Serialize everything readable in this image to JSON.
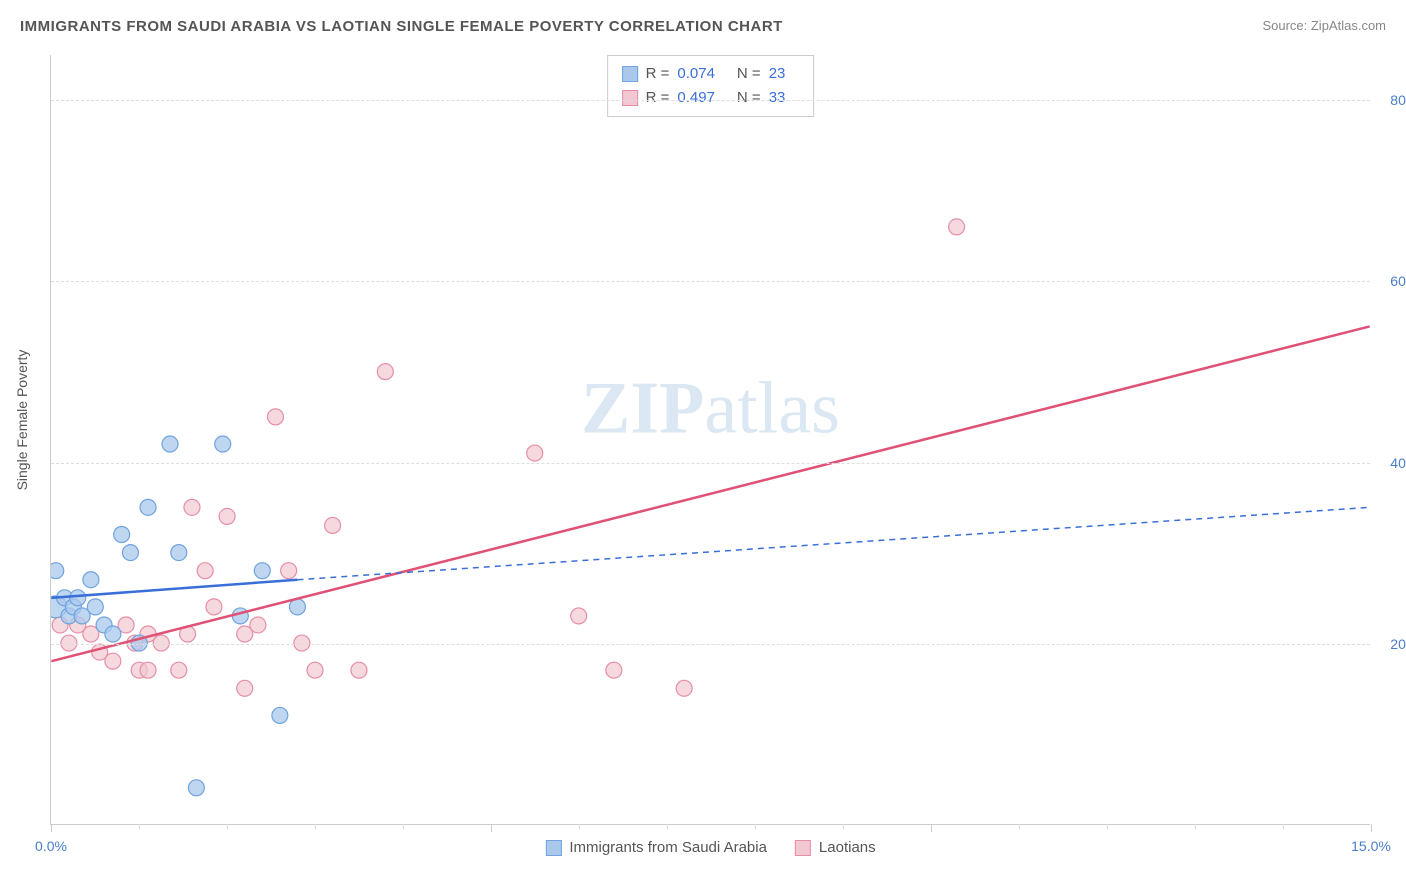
{
  "title": "IMMIGRANTS FROM SAUDI ARABIA VS LAOTIAN SINGLE FEMALE POVERTY CORRELATION CHART",
  "source": "Source: ZipAtlas.com",
  "watermark": "ZIPatlas",
  "y_axis_label": "Single Female Poverty",
  "chart": {
    "type": "scatter",
    "xlim": [
      0,
      15
    ],
    "ylim": [
      0,
      85
    ],
    "x_ticks_labeled": [
      {
        "val": 0,
        "label": "0.0%"
      },
      {
        "val": 15,
        "label": "15.0%"
      }
    ],
    "x_ticks_major": [
      0,
      5,
      10,
      15
    ],
    "x_ticks_minor": [
      1,
      2,
      3,
      4,
      6,
      7,
      8,
      9,
      11,
      12,
      13,
      14
    ],
    "y_gridlines": [
      20,
      40,
      60,
      80
    ],
    "background_color": "#ffffff",
    "grid_color": "#dddddd",
    "axis_color": "#cccccc"
  },
  "series": {
    "saudi": {
      "label": "Immigrants from Saudi Arabia",
      "color_fill": "#a9c8ec",
      "color_stroke": "#6fa3dd",
      "marker_radius": 8,
      "marker_opacity": 0.75,
      "stats": {
        "R": "0.074",
        "N": "23"
      },
      "trend": {
        "solid": {
          "x1": 0,
          "y1": 25,
          "x2": 2.8,
          "y2": 27
        },
        "dashed": {
          "x1": 2.8,
          "y1": 27,
          "x2": 15,
          "y2": 35
        },
        "stroke": "#3a6fd8",
        "stroke_width": 2.5,
        "dash": "6,5"
      },
      "points": [
        {
          "x": 0.05,
          "y": 24,
          "r": 11
        },
        {
          "x": 0.05,
          "y": 28
        },
        {
          "x": 0.15,
          "y": 25
        },
        {
          "x": 0.2,
          "y": 23
        },
        {
          "x": 0.25,
          "y": 24
        },
        {
          "x": 0.3,
          "y": 25
        },
        {
          "x": 0.35,
          "y": 23
        },
        {
          "x": 0.45,
          "y": 27
        },
        {
          "x": 0.5,
          "y": 24
        },
        {
          "x": 0.6,
          "y": 22
        },
        {
          "x": 0.7,
          "y": 21
        },
        {
          "x": 0.8,
          "y": 32
        },
        {
          "x": 0.9,
          "y": 30
        },
        {
          "x": 1.0,
          "y": 20
        },
        {
          "x": 1.1,
          "y": 35
        },
        {
          "x": 1.35,
          "y": 42
        },
        {
          "x": 1.45,
          "y": 30
        },
        {
          "x": 1.65,
          "y": 4
        },
        {
          "x": 1.95,
          "y": 42
        },
        {
          "x": 2.15,
          "y": 23
        },
        {
          "x": 2.4,
          "y": 28
        },
        {
          "x": 2.6,
          "y": 12
        },
        {
          "x": 2.8,
          "y": 24
        }
      ]
    },
    "laotian": {
      "label": "Laotians",
      "color_fill": "#f2c7d2",
      "color_stroke": "#e58fa6",
      "marker_radius": 8,
      "marker_opacity": 0.7,
      "stats": {
        "R": "0.497",
        "N": "33"
      },
      "trend": {
        "x1": 0,
        "y1": 18,
        "x2": 15,
        "y2": 55,
        "stroke": "#e05275",
        "stroke_width": 2.5
      },
      "points": [
        {
          "x": 0.1,
          "y": 22
        },
        {
          "x": 0.2,
          "y": 20
        },
        {
          "x": 0.3,
          "y": 22
        },
        {
          "x": 0.45,
          "y": 21
        },
        {
          "x": 0.55,
          "y": 19
        },
        {
          "x": 0.7,
          "y": 18
        },
        {
          "x": 0.85,
          "y": 22
        },
        {
          "x": 0.95,
          "y": 20
        },
        {
          "x": 1.0,
          "y": 17
        },
        {
          "x": 1.1,
          "y": 21
        },
        {
          "x": 1.1,
          "y": 17
        },
        {
          "x": 1.25,
          "y": 20
        },
        {
          "x": 1.45,
          "y": 17
        },
        {
          "x": 1.55,
          "y": 21
        },
        {
          "x": 1.6,
          "y": 35
        },
        {
          "x": 1.75,
          "y": 28
        },
        {
          "x": 1.85,
          "y": 24
        },
        {
          "x": 2.0,
          "y": 34
        },
        {
          "x": 2.2,
          "y": 21
        },
        {
          "x": 2.2,
          "y": 15
        },
        {
          "x": 2.35,
          "y": 22
        },
        {
          "x": 2.55,
          "y": 45
        },
        {
          "x": 2.7,
          "y": 28
        },
        {
          "x": 2.85,
          "y": 20
        },
        {
          "x": 3.0,
          "y": 17
        },
        {
          "x": 3.2,
          "y": 33
        },
        {
          "x": 3.5,
          "y": 17
        },
        {
          "x": 3.8,
          "y": 50
        },
        {
          "x": 5.5,
          "y": 41
        },
        {
          "x": 6.0,
          "y": 23
        },
        {
          "x": 6.4,
          "y": 17
        },
        {
          "x": 7.2,
          "y": 15
        },
        {
          "x": 10.3,
          "y": 66
        }
      ]
    }
  }
}
